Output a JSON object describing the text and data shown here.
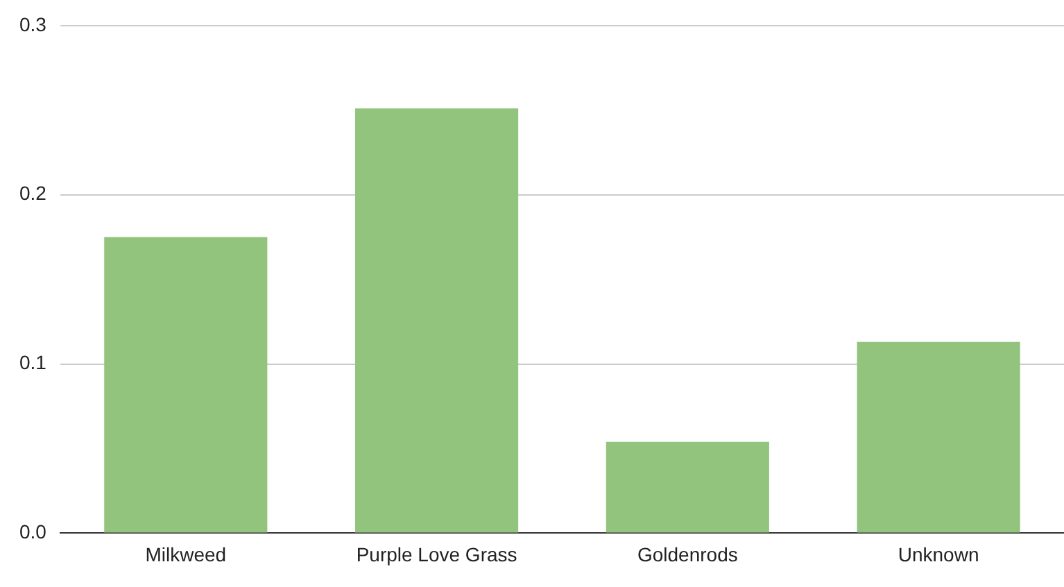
{
  "chart_data": {
    "type": "bar",
    "categories": [
      "Milkweed",
      "Purple Love Grass",
      "Goldenrods",
      "Unknown"
    ],
    "values": [
      0.175,
      0.251,
      0.054,
      0.113
    ],
    "color": "#93c47d",
    "ylim": [
      0,
      0.3
    ],
    "yticks": [
      {
        "value": 0,
        "label": "0.0"
      },
      {
        "value": 0.1,
        "label": "0.1"
      },
      {
        "value": 0.2,
        "label": "0.2"
      },
      {
        "value": 0.3,
        "label": "0.3"
      }
    ],
    "grid": "y",
    "legend": false
  }
}
